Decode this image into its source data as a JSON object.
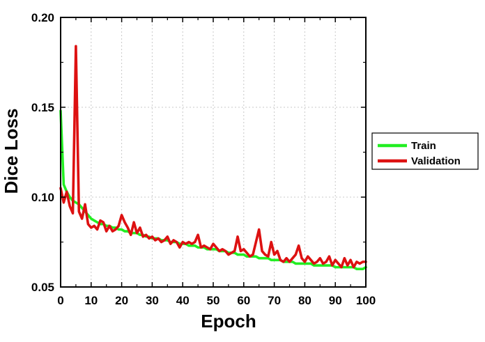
{
  "chart_data": {
    "type": "line",
    "xlabel": "Epoch",
    "ylabel": "Dice Loss",
    "xlim": [
      0,
      100
    ],
    "ylim": [
      0.05,
      0.2
    ],
    "x_ticks": [
      0,
      10,
      20,
      30,
      40,
      50,
      60,
      70,
      80,
      90,
      100
    ],
    "x_tick_labels": [
      "0",
      "10",
      "20",
      "30",
      "40",
      "50",
      "60",
      "70",
      "80",
      "90",
      "100"
    ],
    "y_ticks": [
      0.05,
      0.1,
      0.15,
      0.2
    ],
    "y_tick_labels": [
      "0.05",
      "0.10",
      "0.15",
      "0.20"
    ],
    "grid": true,
    "legend_position": "right",
    "series": [
      {
        "name": "Train",
        "color": "#22ee22",
        "x": [
          0,
          1,
          2,
          3,
          4,
          5,
          6,
          7,
          8,
          9,
          10,
          11,
          12,
          13,
          14,
          15,
          16,
          17,
          18,
          19,
          20,
          21,
          22,
          23,
          24,
          25,
          26,
          27,
          28,
          29,
          30,
          31,
          32,
          33,
          34,
          35,
          36,
          37,
          38,
          39,
          40,
          41,
          42,
          43,
          44,
          45,
          46,
          47,
          48,
          49,
          50,
          51,
          52,
          53,
          54,
          55,
          56,
          57,
          58,
          59,
          60,
          61,
          62,
          63,
          64,
          65,
          66,
          67,
          68,
          69,
          70,
          71,
          72,
          73,
          74,
          75,
          76,
          77,
          78,
          79,
          80,
          81,
          82,
          83,
          84,
          85,
          86,
          87,
          88,
          89,
          90,
          91,
          92,
          93,
          94,
          95,
          96,
          97,
          98,
          99,
          100
        ],
        "values": [
          0.148,
          0.107,
          0.103,
          0.1,
          0.098,
          0.097,
          0.096,
          0.094,
          0.092,
          0.09,
          0.088,
          0.087,
          0.086,
          0.085,
          0.085,
          0.084,
          0.084,
          0.083,
          0.083,
          0.082,
          0.082,
          0.081,
          0.081,
          0.08,
          0.08,
          0.08,
          0.079,
          0.079,
          0.078,
          0.078,
          0.077,
          0.077,
          0.077,
          0.076,
          0.076,
          0.076,
          0.075,
          0.075,
          0.075,
          0.074,
          0.074,
          0.074,
          0.073,
          0.073,
          0.073,
          0.072,
          0.072,
          0.072,
          0.071,
          0.071,
          0.071,
          0.071,
          0.07,
          0.07,
          0.07,
          0.069,
          0.069,
          0.069,
          0.068,
          0.068,
          0.068,
          0.067,
          0.067,
          0.067,
          0.067,
          0.066,
          0.066,
          0.066,
          0.066,
          0.065,
          0.065,
          0.065,
          0.065,
          0.064,
          0.064,
          0.064,
          0.064,
          0.063,
          0.063,
          0.063,
          0.063,
          0.063,
          0.063,
          0.062,
          0.062,
          0.062,
          0.062,
          0.062,
          0.062,
          0.062,
          0.061,
          0.061,
          0.061,
          0.061,
          0.061,
          0.061,
          0.061,
          0.06,
          0.06,
          0.06,
          0.061
        ]
      },
      {
        "name": "Validation",
        "color": "#dd1111",
        "x": [
          0,
          1,
          2,
          3,
          4,
          5,
          6,
          7,
          8,
          9,
          10,
          11,
          12,
          13,
          14,
          15,
          16,
          17,
          18,
          19,
          20,
          21,
          22,
          23,
          24,
          25,
          26,
          27,
          28,
          29,
          30,
          31,
          32,
          33,
          34,
          35,
          36,
          37,
          38,
          39,
          40,
          41,
          42,
          43,
          44,
          45,
          46,
          47,
          48,
          49,
          50,
          51,
          52,
          53,
          54,
          55,
          56,
          57,
          58,
          59,
          60,
          61,
          62,
          63,
          64,
          65,
          66,
          67,
          68,
          69,
          70,
          71,
          72,
          73,
          74,
          75,
          76,
          77,
          78,
          79,
          80,
          81,
          82,
          83,
          84,
          85,
          86,
          87,
          88,
          89,
          90,
          91,
          92,
          93,
          94,
          95,
          96,
          97,
          98,
          99,
          100
        ],
        "values": [
          0.105,
          0.097,
          0.103,
          0.095,
          0.091,
          0.184,
          0.092,
          0.088,
          0.096,
          0.085,
          0.083,
          0.084,
          0.082,
          0.087,
          0.086,
          0.081,
          0.084,
          0.081,
          0.082,
          0.084,
          0.09,
          0.086,
          0.083,
          0.079,
          0.086,
          0.08,
          0.083,
          0.078,
          0.079,
          0.077,
          0.078,
          0.076,
          0.077,
          0.075,
          0.076,
          0.078,
          0.074,
          0.076,
          0.075,
          0.072,
          0.075,
          0.074,
          0.075,
          0.074,
          0.075,
          0.079,
          0.072,
          0.073,
          0.072,
          0.071,
          0.074,
          0.072,
          0.07,
          0.071,
          0.07,
          0.068,
          0.069,
          0.07,
          0.078,
          0.07,
          0.071,
          0.069,
          0.067,
          0.068,
          0.075,
          0.082,
          0.07,
          0.068,
          0.067,
          0.075,
          0.068,
          0.07,
          0.065,
          0.064,
          0.066,
          0.064,
          0.066,
          0.068,
          0.073,
          0.066,
          0.064,
          0.067,
          0.065,
          0.063,
          0.064,
          0.066,
          0.063,
          0.064,
          0.067,
          0.062,
          0.065,
          0.063,
          0.061,
          0.066,
          0.062,
          0.065,
          0.061,
          0.064,
          0.063,
          0.064,
          0.064
        ]
      }
    ]
  }
}
